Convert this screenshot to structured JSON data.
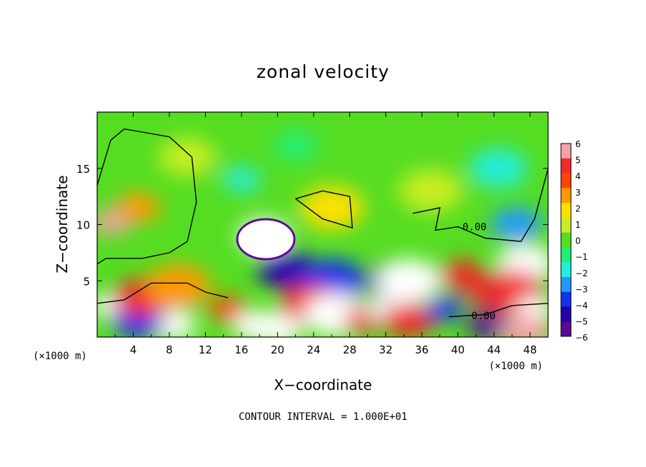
{
  "chart_data": {
    "type": "heatmap",
    "title": "zonal velocity",
    "xlabel": "X−coordinate",
    "ylabel": "Z−coordinate",
    "xunit_left": "(×1000 m)",
    "xunit_right": "(×1000 m)",
    "footer": "CONTOUR INTERVAL = 1.000E+01",
    "xlim": [
      0,
      50
    ],
    "ylim": [
      0,
      20
    ],
    "xticks": [
      4,
      8,
      12,
      16,
      20,
      24,
      28,
      32,
      36,
      40,
      44,
      48
    ],
    "yticks": [
      5,
      10,
      15
    ],
    "colorbar": {
      "levels": [
        6,
        5,
        4,
        3,
        2,
        1,
        0,
        -1,
        -2,
        -3,
        -4,
        -5,
        -6
      ],
      "labels": [
        "6",
        "5",
        "4",
        "3",
        "2",
        "1",
        "0",
        "−1",
        "−2",
        "−3",
        "−4",
        "−5",
        "−6"
      ],
      "colors": [
        "#f4a3a8",
        "#ef2b2b",
        "#ff4400",
        "#ff9900",
        "#ffe000",
        "#c6ee22",
        "#55dd22",
        "#22ee77",
        "#22eedd",
        "#2299ff",
        "#1133ee",
        "#2200aa",
        "#5a0a96"
      ]
    },
    "contour_labels": [
      {
        "text": "0.00",
        "x": 40.5,
        "y": 9.5
      },
      {
        "text": "0.00",
        "x": 41.5,
        "y": 1.6
      }
    ],
    "field_features": [
      {
        "x": 1.5,
        "z": 10.2,
        "v": 5.5
      },
      {
        "x": 4.5,
        "z": 11.5,
        "v": 3
      },
      {
        "x": 18.5,
        "z": 9,
        "v": -7
      },
      {
        "x": 21,
        "z": 6,
        "v": -5
      },
      {
        "x": 26,
        "z": 5,
        "v": -4
      },
      {
        "x": 16,
        "z": 14,
        "v": -2
      },
      {
        "x": 22,
        "z": 17,
        "v": -1.5
      },
      {
        "x": 46.5,
        "z": 10,
        "v": -3.5
      },
      {
        "x": 44.5,
        "z": 15,
        "v": -2.5
      },
      {
        "x": 26,
        "z": 11.5,
        "v": 1.5
      },
      {
        "x": 1.5,
        "z": 2.8,
        "v": -7
      },
      {
        "x": 8.5,
        "z": 1,
        "v": -7
      },
      {
        "x": 4.5,
        "z": 1.4,
        "v": -4.5
      },
      {
        "x": 5,
        "z": 3.5,
        "v": 5
      },
      {
        "x": 9,
        "z": 4.5,
        "v": 3
      },
      {
        "x": 14.5,
        "z": 2.5,
        "v": 4
      },
      {
        "x": 17.5,
        "z": 1,
        "v": 7
      },
      {
        "x": 20,
        "z": 0.8,
        "v": 7
      },
      {
        "x": 23.5,
        "z": 3,
        "v": 5
      },
      {
        "x": 26.5,
        "z": 2,
        "v": 7
      },
      {
        "x": 29.5,
        "z": 1.5,
        "v": 5
      },
      {
        "x": 32.5,
        "z": 2.5,
        "v": 7
      },
      {
        "x": 34.5,
        "z": 1.5,
        "v": 5
      },
      {
        "x": 33,
        "z": 5,
        "v": -5
      },
      {
        "x": 34.5,
        "z": 5,
        "v": -7
      },
      {
        "x": 38.5,
        "z": 2.5,
        "v": -4
      },
      {
        "x": 40.5,
        "z": 5.5,
        "v": 5
      },
      {
        "x": 44,
        "z": 4,
        "v": 5
      },
      {
        "x": 47.5,
        "z": 6.5,
        "v": 7
      },
      {
        "x": 46,
        "z": 4,
        "v": 5
      },
      {
        "x": 48.5,
        "z": 2.5,
        "v": -7
      },
      {
        "x": 43.5,
        "z": 1,
        "v": -6
      },
      {
        "x": 47.5,
        "z": 0.5,
        "v": 6
      },
      {
        "x": 10,
        "z": 16,
        "v": 1
      },
      {
        "x": 37,
        "z": 13,
        "v": 0.5
      }
    ]
  }
}
